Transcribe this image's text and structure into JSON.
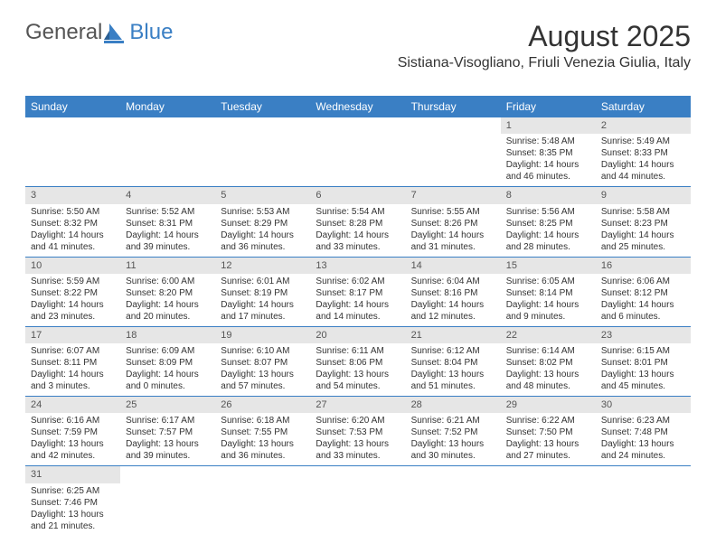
{
  "brand": {
    "part1": "General",
    "part2": "Blue"
  },
  "title": "August 2025",
  "location": "Sistiana-Visogliano, Friuli Venezia Giulia, Italy",
  "colors": {
    "primary": "#3a7fc4",
    "header_bg": "#3a7fc4",
    "daynum_bg": "#e6e6e6"
  },
  "day_headers": [
    "Sunday",
    "Monday",
    "Tuesday",
    "Wednesday",
    "Thursday",
    "Friday",
    "Saturday"
  ],
  "weeks": [
    [
      null,
      null,
      null,
      null,
      null,
      {
        "n": "1",
        "sr": "Sunrise: 5:48 AM",
        "ss": "Sunset: 8:35 PM",
        "d1": "Daylight: 14 hours",
        "d2": "and 46 minutes."
      },
      {
        "n": "2",
        "sr": "Sunrise: 5:49 AM",
        "ss": "Sunset: 8:33 PM",
        "d1": "Daylight: 14 hours",
        "d2": "and 44 minutes."
      }
    ],
    [
      {
        "n": "3",
        "sr": "Sunrise: 5:50 AM",
        "ss": "Sunset: 8:32 PM",
        "d1": "Daylight: 14 hours",
        "d2": "and 41 minutes."
      },
      {
        "n": "4",
        "sr": "Sunrise: 5:52 AM",
        "ss": "Sunset: 8:31 PM",
        "d1": "Daylight: 14 hours",
        "d2": "and 39 minutes."
      },
      {
        "n": "5",
        "sr": "Sunrise: 5:53 AM",
        "ss": "Sunset: 8:29 PM",
        "d1": "Daylight: 14 hours",
        "d2": "and 36 minutes."
      },
      {
        "n": "6",
        "sr": "Sunrise: 5:54 AM",
        "ss": "Sunset: 8:28 PM",
        "d1": "Daylight: 14 hours",
        "d2": "and 33 minutes."
      },
      {
        "n": "7",
        "sr": "Sunrise: 5:55 AM",
        "ss": "Sunset: 8:26 PM",
        "d1": "Daylight: 14 hours",
        "d2": "and 31 minutes."
      },
      {
        "n": "8",
        "sr": "Sunrise: 5:56 AM",
        "ss": "Sunset: 8:25 PM",
        "d1": "Daylight: 14 hours",
        "d2": "and 28 minutes."
      },
      {
        "n": "9",
        "sr": "Sunrise: 5:58 AM",
        "ss": "Sunset: 8:23 PM",
        "d1": "Daylight: 14 hours",
        "d2": "and 25 minutes."
      }
    ],
    [
      {
        "n": "10",
        "sr": "Sunrise: 5:59 AM",
        "ss": "Sunset: 8:22 PM",
        "d1": "Daylight: 14 hours",
        "d2": "and 23 minutes."
      },
      {
        "n": "11",
        "sr": "Sunrise: 6:00 AM",
        "ss": "Sunset: 8:20 PM",
        "d1": "Daylight: 14 hours",
        "d2": "and 20 minutes."
      },
      {
        "n": "12",
        "sr": "Sunrise: 6:01 AM",
        "ss": "Sunset: 8:19 PM",
        "d1": "Daylight: 14 hours",
        "d2": "and 17 minutes."
      },
      {
        "n": "13",
        "sr": "Sunrise: 6:02 AM",
        "ss": "Sunset: 8:17 PM",
        "d1": "Daylight: 14 hours",
        "d2": "and 14 minutes."
      },
      {
        "n": "14",
        "sr": "Sunrise: 6:04 AM",
        "ss": "Sunset: 8:16 PM",
        "d1": "Daylight: 14 hours",
        "d2": "and 12 minutes."
      },
      {
        "n": "15",
        "sr": "Sunrise: 6:05 AM",
        "ss": "Sunset: 8:14 PM",
        "d1": "Daylight: 14 hours",
        "d2": "and 9 minutes."
      },
      {
        "n": "16",
        "sr": "Sunrise: 6:06 AM",
        "ss": "Sunset: 8:12 PM",
        "d1": "Daylight: 14 hours",
        "d2": "and 6 minutes."
      }
    ],
    [
      {
        "n": "17",
        "sr": "Sunrise: 6:07 AM",
        "ss": "Sunset: 8:11 PM",
        "d1": "Daylight: 14 hours",
        "d2": "and 3 minutes."
      },
      {
        "n": "18",
        "sr": "Sunrise: 6:09 AM",
        "ss": "Sunset: 8:09 PM",
        "d1": "Daylight: 14 hours",
        "d2": "and 0 minutes."
      },
      {
        "n": "19",
        "sr": "Sunrise: 6:10 AM",
        "ss": "Sunset: 8:07 PM",
        "d1": "Daylight: 13 hours",
        "d2": "and 57 minutes."
      },
      {
        "n": "20",
        "sr": "Sunrise: 6:11 AM",
        "ss": "Sunset: 8:06 PM",
        "d1": "Daylight: 13 hours",
        "d2": "and 54 minutes."
      },
      {
        "n": "21",
        "sr": "Sunrise: 6:12 AM",
        "ss": "Sunset: 8:04 PM",
        "d1": "Daylight: 13 hours",
        "d2": "and 51 minutes."
      },
      {
        "n": "22",
        "sr": "Sunrise: 6:14 AM",
        "ss": "Sunset: 8:02 PM",
        "d1": "Daylight: 13 hours",
        "d2": "and 48 minutes."
      },
      {
        "n": "23",
        "sr": "Sunrise: 6:15 AM",
        "ss": "Sunset: 8:01 PM",
        "d1": "Daylight: 13 hours",
        "d2": "and 45 minutes."
      }
    ],
    [
      {
        "n": "24",
        "sr": "Sunrise: 6:16 AM",
        "ss": "Sunset: 7:59 PM",
        "d1": "Daylight: 13 hours",
        "d2": "and 42 minutes."
      },
      {
        "n": "25",
        "sr": "Sunrise: 6:17 AM",
        "ss": "Sunset: 7:57 PM",
        "d1": "Daylight: 13 hours",
        "d2": "and 39 minutes."
      },
      {
        "n": "26",
        "sr": "Sunrise: 6:18 AM",
        "ss": "Sunset: 7:55 PM",
        "d1": "Daylight: 13 hours",
        "d2": "and 36 minutes."
      },
      {
        "n": "27",
        "sr": "Sunrise: 6:20 AM",
        "ss": "Sunset: 7:53 PM",
        "d1": "Daylight: 13 hours",
        "d2": "and 33 minutes."
      },
      {
        "n": "28",
        "sr": "Sunrise: 6:21 AM",
        "ss": "Sunset: 7:52 PM",
        "d1": "Daylight: 13 hours",
        "d2": "and 30 minutes."
      },
      {
        "n": "29",
        "sr": "Sunrise: 6:22 AM",
        "ss": "Sunset: 7:50 PM",
        "d1": "Daylight: 13 hours",
        "d2": "and 27 minutes."
      },
      {
        "n": "30",
        "sr": "Sunrise: 6:23 AM",
        "ss": "Sunset: 7:48 PM",
        "d1": "Daylight: 13 hours",
        "d2": "and 24 minutes."
      }
    ],
    [
      {
        "n": "31",
        "sr": "Sunrise: 6:25 AM",
        "ss": "Sunset: 7:46 PM",
        "d1": "Daylight: 13 hours",
        "d2": "and 21 minutes."
      },
      null,
      null,
      null,
      null,
      null,
      null
    ]
  ]
}
